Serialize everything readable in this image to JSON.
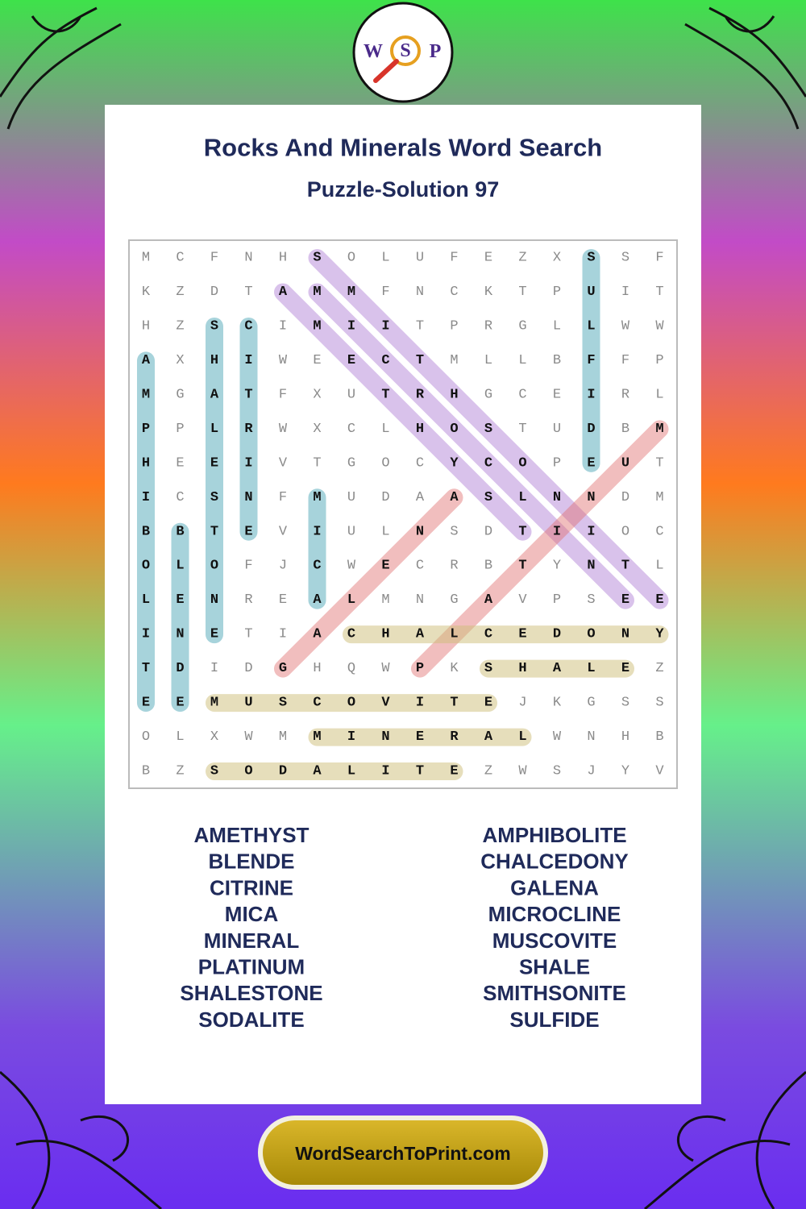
{
  "header": {
    "logo": [
      "W",
      "S",
      "P"
    ],
    "title": "Rocks And Minerals Word Search",
    "subtitle": "Puzzle-Solution 97"
  },
  "grid": {
    "rows": [
      "MCFNHSOLUFEZXSSF",
      "KZDTAMMFNCKTPUIT",
      "HZSCIMIITPRGLLWW",
      "AXHIWEECTMLLBFFP",
      "MGATFXUTRHGCEIRL",
      "PPLRWXCLHOSTUDBM",
      "HEEIVTGOCYCOPEUT",
      "ICSNFMUDAASLNNDM",
      "BBTEVIULNSDTIIOC",
      "OLOFJCWECRBTYNTL",
      "LENREALMNGAVPSEE",
      "INETIACHALCEDONY",
      "TDIDGHQWPKSHALEZ",
      "EEMUSCOVITEJKGSS",
      "OLXWMMINERALWNHB",
      "BZSODALITEZWSJYV"
    ]
  },
  "words": {
    "left": [
      "AMETHYST",
      "BLENDE",
      "CITRINE",
      "MICA",
      "MINERAL",
      "PLATINUM",
      "SHALESTONE",
      "SODALITE"
    ],
    "right": [
      "AMPHIBOLITE",
      "CHALCEDONY",
      "GALENA",
      "MICROCLINE",
      "MUSCOVITE",
      "SHALE",
      "SMITHSONITE",
      "SULFIDE"
    ]
  },
  "footer": {
    "site": "WordSearchToPrint.com"
  }
}
